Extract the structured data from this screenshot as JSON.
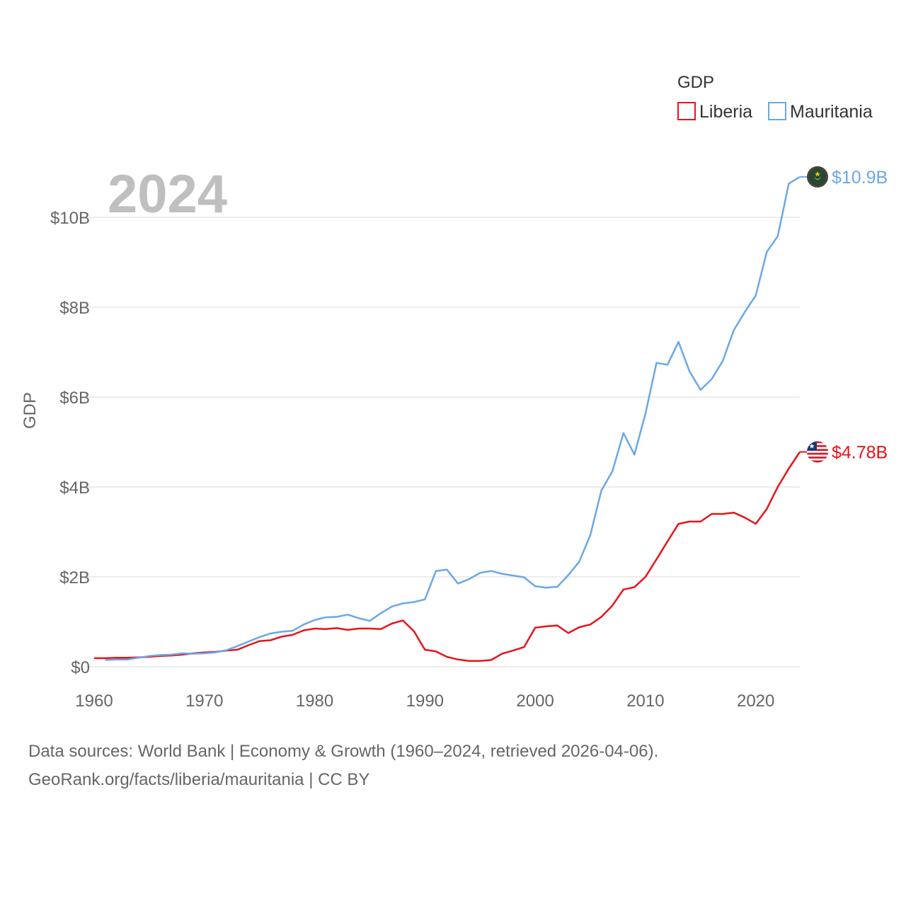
{
  "chart_data": {
    "type": "line",
    "title": "GDP",
    "year_label": "2024",
    "ylabel": "GDP",
    "xlabel": "",
    "xlim": [
      1960,
      2024
    ],
    "ylim": [
      0,
      11000000000
    ],
    "x_ticks": [
      1960,
      1970,
      1980,
      1990,
      2000,
      2010,
      2020
    ],
    "y_ticks": [
      {
        "value": 0,
        "label": "$0"
      },
      {
        "value": 2000000000,
        "label": "$2B"
      },
      {
        "value": 4000000000,
        "label": "$4B"
      },
      {
        "value": 6000000000,
        "label": "$6B"
      },
      {
        "value": 8000000000,
        "label": "$8B"
      },
      {
        "value": 10000000000,
        "label": "$10B"
      }
    ],
    "grid": true,
    "legend": {
      "title": "GDP",
      "placement": "top-right"
    },
    "series": [
      {
        "name": "Liberia",
        "color": "#e8131b",
        "flag_icon": "liberia-flag-icon",
        "end_label": "$4.78B",
        "end_value": 4780000000,
        "points": [
          [
            1960,
            0.19
          ],
          [
            1961,
            0.19
          ],
          [
            1962,
            0.2
          ],
          [
            1963,
            0.2
          ],
          [
            1964,
            0.21
          ],
          [
            1965,
            0.22
          ],
          [
            1966,
            0.24
          ],
          [
            1967,
            0.25
          ],
          [
            1968,
            0.27
          ],
          [
            1969,
            0.3
          ],
          [
            1970,
            0.32
          ],
          [
            1971,
            0.33
          ],
          [
            1972,
            0.36
          ],
          [
            1973,
            0.38
          ],
          [
            1974,
            0.48
          ],
          [
            1975,
            0.57
          ],
          [
            1976,
            0.59
          ],
          [
            1977,
            0.67
          ],
          [
            1978,
            0.71
          ],
          [
            1979,
            0.81
          ],
          [
            1980,
            0.85
          ],
          [
            1981,
            0.84
          ],
          [
            1982,
            0.86
          ],
          [
            1983,
            0.82
          ],
          [
            1984,
            0.85
          ],
          [
            1985,
            0.85
          ],
          [
            1986,
            0.84
          ],
          [
            1987,
            0.96
          ],
          [
            1988,
            1.03
          ],
          [
            1989,
            0.79
          ],
          [
            1990,
            0.38
          ],
          [
            1991,
            0.34
          ],
          [
            1992,
            0.22
          ],
          [
            1993,
            0.16
          ],
          [
            1994,
            0.13
          ],
          [
            1995,
            0.13
          ],
          [
            1996,
            0.15
          ],
          [
            1997,
            0.29
          ],
          [
            1998,
            0.36
          ],
          [
            1999,
            0.44
          ],
          [
            2000,
            0.87
          ],
          [
            2001,
            0.9
          ],
          [
            2002,
            0.92
          ],
          [
            2003,
            0.75
          ],
          [
            2004,
            0.88
          ],
          [
            2005,
            0.94
          ],
          [
            2006,
            1.11
          ],
          [
            2007,
            1.36
          ],
          [
            2008,
            1.72
          ],
          [
            2009,
            1.77
          ],
          [
            2010,
            2.0
          ],
          [
            2011,
            2.39
          ],
          [
            2012,
            2.79
          ],
          [
            2013,
            3.18
          ],
          [
            2014,
            3.23
          ],
          [
            2015,
            3.23
          ],
          [
            2016,
            3.4
          ],
          [
            2017,
            3.4
          ],
          [
            2018,
            3.43
          ],
          [
            2019,
            3.32
          ],
          [
            2020,
            3.18
          ],
          [
            2021,
            3.51
          ],
          [
            2022,
            4.0
          ],
          [
            2023,
            4.41
          ],
          [
            2024,
            4.78
          ]
        ]
      },
      {
        "name": "Mauritania",
        "color": "#6aa8e6",
        "flag_icon": "mauritania-flag-icon",
        "end_label": "$10.9B",
        "end_value": 10900000000,
        "points": [
          [
            1961,
            0.15
          ],
          [
            1962,
            0.16
          ],
          [
            1963,
            0.16
          ],
          [
            1964,
            0.2
          ],
          [
            1965,
            0.24
          ],
          [
            1966,
            0.26
          ],
          [
            1967,
            0.27
          ],
          [
            1968,
            0.3
          ],
          [
            1969,
            0.29
          ],
          [
            1970,
            0.3
          ],
          [
            1971,
            0.32
          ],
          [
            1972,
            0.37
          ],
          [
            1973,
            0.46
          ],
          [
            1974,
            0.56
          ],
          [
            1975,
            0.66
          ],
          [
            1976,
            0.74
          ],
          [
            1977,
            0.78
          ],
          [
            1978,
            0.8
          ],
          [
            1979,
            0.94
          ],
          [
            1980,
            1.04
          ],
          [
            1981,
            1.1
          ],
          [
            1982,
            1.11
          ],
          [
            1983,
            1.16
          ],
          [
            1984,
            1.08
          ],
          [
            1985,
            1.02
          ],
          [
            1986,
            1.19
          ],
          [
            1987,
            1.34
          ],
          [
            1988,
            1.41
          ],
          [
            1989,
            1.44
          ],
          [
            1990,
            1.5
          ],
          [
            1991,
            2.13
          ],
          [
            1992,
            2.16
          ],
          [
            1993,
            1.85
          ],
          [
            1994,
            1.95
          ],
          [
            1995,
            2.09
          ],
          [
            1996,
            2.13
          ],
          [
            1997,
            2.07
          ],
          [
            1998,
            2.03
          ],
          [
            1999,
            1.99
          ],
          [
            2000,
            1.79
          ],
          [
            2001,
            1.76
          ],
          [
            2002,
            1.78
          ],
          [
            2003,
            2.04
          ],
          [
            2004,
            2.34
          ],
          [
            2005,
            2.93
          ],
          [
            2006,
            3.92
          ],
          [
            2007,
            4.35
          ],
          [
            2008,
            5.2
          ],
          [
            2009,
            4.72
          ],
          [
            2010,
            5.63
          ],
          [
            2011,
            6.76
          ],
          [
            2012,
            6.72
          ],
          [
            2013,
            7.23
          ],
          [
            2014,
            6.57
          ],
          [
            2015,
            6.16
          ],
          [
            2016,
            6.4
          ],
          [
            2017,
            6.8
          ],
          [
            2018,
            7.48
          ],
          [
            2019,
            7.89
          ],
          [
            2020,
            8.26
          ],
          [
            2021,
            9.23
          ],
          [
            2022,
            9.58
          ],
          [
            2023,
            10.75
          ],
          [
            2024,
            10.9
          ]
        ]
      }
    ],
    "value_unit_note": "point values are in billions of US dollars"
  },
  "footer": {
    "line1": "Data sources: World Bank | Economy & Growth (1960–2024, retrieved 2026-04-06).",
    "line2": "GeoRank.org/facts/liberia/mauritania | CC BY"
  }
}
